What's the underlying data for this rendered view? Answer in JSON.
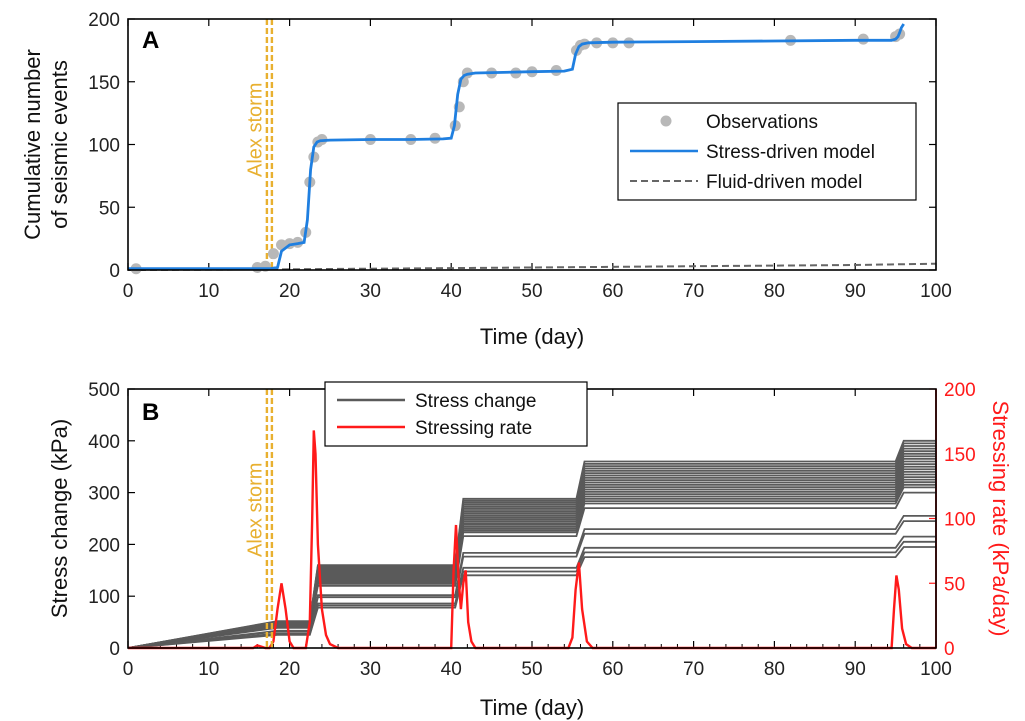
{
  "colors": {
    "observations": "#b8b8b8",
    "stress_model": "#1f7fe0",
    "fluid_model": "#666666",
    "storm": "#e8b030",
    "stress_change": "#5a5a5a",
    "stressing_rate": "#ff1a1a",
    "axis": "#000000"
  },
  "chart_data": [
    {
      "panel": "A",
      "type": "line",
      "xlabel": "Time (day)",
      "ylabel_lines": [
        "Cumulative number",
        "of seismic events"
      ],
      "xlim": [
        0,
        100
      ],
      "ylim": [
        0,
        200
      ],
      "xticks": [
        0,
        10,
        20,
        30,
        40,
        50,
        60,
        70,
        80,
        90,
        100
      ],
      "yticks": [
        0,
        50,
        100,
        150,
        200
      ],
      "storm_x": 17.5,
      "storm_label": "Alex storm",
      "legend_position": "right",
      "legend": [
        "Observations",
        "Stress-driven model",
        "Fluid-driven model"
      ],
      "series": [
        {
          "name": "Observations",
          "style": "dots",
          "x": [
            1,
            16,
            17,
            18,
            19,
            20,
            21,
            22,
            22.5,
            23,
            23.5,
            24,
            30,
            35,
            38,
            40.5,
            41,
            41.5,
            42,
            45,
            48,
            50,
            53,
            55.5,
            56,
            56.5,
            58,
            60,
            62,
            82,
            91,
            95,
            95.5
          ],
          "y": [
            1,
            2,
            3,
            13,
            20,
            21,
            22,
            30,
            70,
            90,
            102,
            104,
            104,
            104,
            105,
            115,
            130,
            150,
            157,
            157,
            157,
            158,
            159,
            175,
            179,
            180,
            181,
            181,
            181,
            183,
            184,
            186,
            188
          ]
        },
        {
          "name": "Stress-driven model",
          "style": "line",
          "x": [
            0,
            17.5,
            18.5,
            19,
            20,
            21,
            21.8,
            22.2,
            22.6,
            23,
            23.4,
            23.8,
            25,
            30,
            35,
            39,
            40,
            40.4,
            40.8,
            41.2,
            41.6,
            42,
            43,
            50,
            54,
            55,
            55.4,
            55.8,
            56.2,
            57,
            60,
            70,
            80,
            90,
            94.5,
            95,
            95.3,
            95.5,
            95.7,
            96
          ],
          "y": [
            1,
            1,
            2,
            15,
            20,
            21,
            22,
            40,
            80,
            98,
            102,
            103,
            103.5,
            104,
            104,
            104.5,
            105,
            115,
            140,
            152,
            155,
            156,
            157,
            158,
            158.5,
            160,
            172,
            178,
            180,
            181,
            181.5,
            182,
            182.5,
            183,
            183,
            184,
            186,
            189,
            193,
            196
          ]
        },
        {
          "name": "Fluid-driven model",
          "style": "dashed",
          "x": [
            0,
            17.5,
            30,
            50,
            70,
            90,
            100
          ],
          "y": [
            0,
            0.5,
            1,
            2,
            3,
            4,
            5
          ]
        }
      ]
    },
    {
      "panel": "B",
      "type": "line",
      "xlabel": "Time (day)",
      "ylabel": "Stress change (kPa)",
      "ylabel_right": "Stressing rate (kPa/day)",
      "xlim": [
        0,
        100
      ],
      "ylim": [
        0,
        500
      ],
      "ylim_right": [
        0,
        200
      ],
      "xticks": [
        0,
        10,
        20,
        30,
        40,
        50,
        60,
        70,
        80,
        90,
        100
      ],
      "yticks": [
        0,
        100,
        200,
        300,
        400,
        500
      ],
      "yticks_right": [
        0,
        50,
        100,
        150,
        200
      ],
      "storm_x": 17.5,
      "storm_label": "Alex storm",
      "legend_position": "top-left",
      "legend": [
        "Stress change",
        "Stressing rate"
      ],
      "stress_change_finals": [
        195,
        205,
        215,
        245,
        255,
        300,
        310,
        315,
        320,
        325,
        330,
        335,
        340,
        345,
        350,
        355,
        360,
        365,
        370,
        375,
        380,
        385,
        390,
        395,
        400
      ],
      "stress_change_steps": {
        "x": [
          0,
          18.5,
          22.5,
          23.5,
          40.5,
          41.5,
          55.5,
          56.5,
          95,
          96,
          100
        ],
        "fraction": [
          0,
          0.13,
          0.13,
          0.4,
          0.4,
          0.72,
          0.72,
          0.9,
          0.9,
          1,
          1
        ]
      },
      "stressing_rate": {
        "x": [
          0,
          15.5,
          16,
          16.5,
          17,
          17.5,
          18,
          18.5,
          19,
          19.5,
          20,
          20.5,
          21,
          22,
          22.5,
          22.8,
          23,
          23.2,
          23.5,
          24,
          24.5,
          25,
          26,
          40,
          40.3,
          40.6,
          40.9,
          41.2,
          41.5,
          41.8,
          42.1,
          42.5,
          43,
          54.5,
          55,
          55.4,
          55.8,
          56.2,
          56.8,
          57.5,
          94.5,
          94.8,
          95.1,
          95.4,
          95.8,
          96.3,
          97,
          100
        ],
        "y": [
          0,
          0,
          2,
          1,
          0,
          0,
          5,
          30,
          50,
          30,
          5,
          0,
          0,
          0,
          20,
          100,
          168,
          150,
          80,
          30,
          10,
          3,
          0,
          0,
          60,
          95,
          55,
          30,
          50,
          60,
          20,
          5,
          0,
          0,
          8,
          45,
          66,
          30,
          5,
          0,
          0,
          30,
          56,
          45,
          15,
          3,
          0,
          0
        ]
      }
    }
  ]
}
